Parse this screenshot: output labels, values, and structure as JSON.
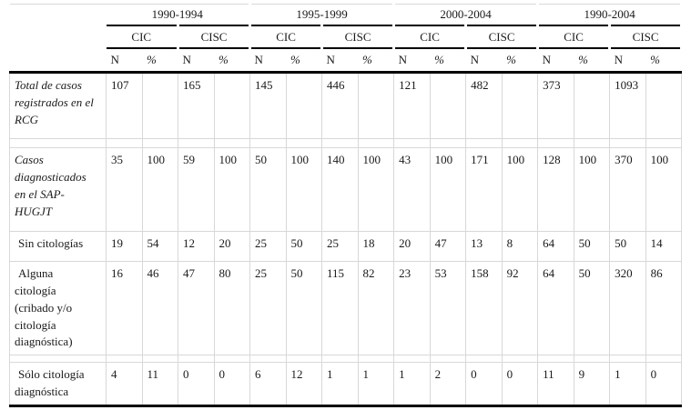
{
  "table": {
    "period_headers": [
      "1990-1994",
      "1995-1999",
      "2000-2004",
      "1990-2004"
    ],
    "group_headers": [
      "CIC",
      "CISC"
    ],
    "measure_headers": [
      "N",
      "%"
    ],
    "rows": [
      {
        "label": "Total de casos registrados en el RCG",
        "italic": true,
        "values": [
          "107",
          "",
          "165",
          "",
          "145",
          "",
          "446",
          "",
          "121",
          "",
          "482",
          "",
          "373",
          "",
          "1093",
          ""
        ]
      },
      {
        "label": "Casos diagnosticados en el SAP-HUGJT",
        "italic": true,
        "values": [
          "35",
          "100",
          "59",
          "100",
          "50",
          "100",
          "140",
          "100",
          "43",
          "100",
          "171",
          "100",
          "128",
          "100",
          "370",
          "100"
        ]
      },
      {
        "label": "Sin citologías",
        "italic": false,
        "values": [
          "19",
          "54",
          "12",
          "20",
          "25",
          "50",
          "25",
          "18",
          "20",
          "47",
          "13",
          "8",
          "64",
          "50",
          "50",
          "14"
        ]
      },
      {
        "label": "Alguna citología (cribado y/o citología diagnóstica)",
        "italic": false,
        "values": [
          "16",
          "46",
          "47",
          "80",
          "25",
          "50",
          "115",
          "82",
          "23",
          "53",
          "158",
          "92",
          "64",
          "50",
          "320",
          "86"
        ]
      },
      {
        "label": "Sólo citología diagnóstica",
        "italic": false,
        "values": [
          "4",
          "11",
          "0",
          "0",
          "6",
          "12",
          "1",
          "1",
          "1",
          "2",
          "0",
          "0",
          "11",
          "9",
          "1",
          "0"
        ]
      }
    ],
    "colors": {
      "heavy_rule": "#000000",
      "light_grid": "#d8d8d8",
      "text": "#1a1a1a",
      "background": "#ffffff"
    }
  }
}
